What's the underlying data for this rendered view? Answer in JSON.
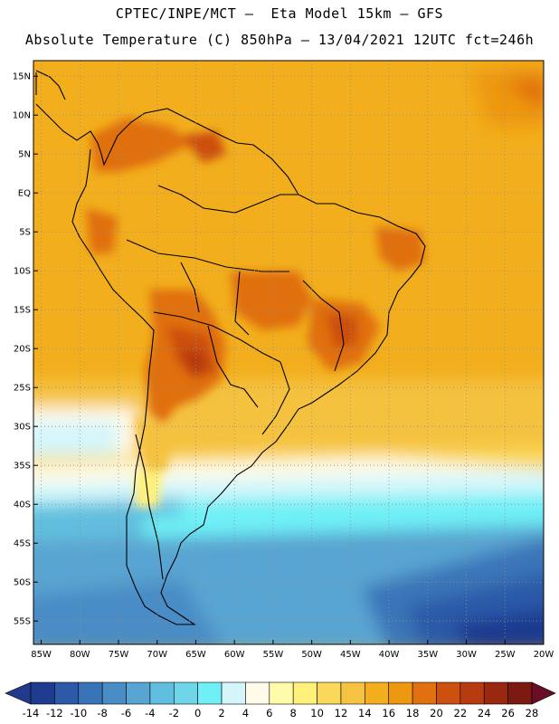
{
  "header": {
    "line1": "CPTEC/INPE/MCT —  Eta Model 15km — GFS",
    "line2": "Absolute Temperature (C) 850hPa — 13/04/2021 12UTC fct=246h"
  },
  "map": {
    "lat_labels": [
      "15N",
      "10N",
      "5N",
      "EQ",
      "5S",
      "10S",
      "15S",
      "20S",
      "25S",
      "30S",
      "35S",
      "40S",
      "45S",
      "50S",
      "55S"
    ],
    "lat_values": [
      15,
      10,
      5,
      0,
      -5,
      -10,
      -15,
      -20,
      -25,
      -30,
      -35,
      -40,
      -45,
      -50,
      -55
    ],
    "lon_labels": [
      "85W",
      "80W",
      "75W",
      "70W",
      "65W",
      "60W",
      "55W",
      "50W",
      "45W",
      "40W",
      "35W",
      "30W",
      "25W",
      "20W"
    ],
    "lon_values": [
      -85,
      -80,
      -75,
      -70,
      -65,
      -60,
      -55,
      -50,
      -45,
      -40,
      -35,
      -30,
      -25,
      -20
    ],
    "lat_range": [
      -58,
      17
    ],
    "lon_range": [
      -86,
      -20
    ]
  },
  "colorbar": {
    "labels": [
      "-14",
      "-12",
      "-10",
      "-8",
      "-6",
      "-4",
      "-2",
      "0",
      "2",
      "4",
      "6",
      "8",
      "10",
      "12",
      "14",
      "16",
      "18",
      "20",
      "22",
      "24",
      "26",
      "28"
    ],
    "colors": [
      "#1f3b8f",
      "#2c5aa8",
      "#3a74b8",
      "#4a8cc6",
      "#58a4d2",
      "#62bede",
      "#6fd6ea",
      "#70f0f6",
      "#d4f6fb",
      "#fffbe8",
      "#fffbaa",
      "#fff07a",
      "#f9d85a",
      "#f5c241",
      "#f2ae1d",
      "#ee9710",
      "#e07010",
      "#cc5010",
      "#b83a10",
      "#982810",
      "#7a1a10"
    ],
    "under_color": "#223a8a",
    "over_color": "#6a0e28"
  }
}
